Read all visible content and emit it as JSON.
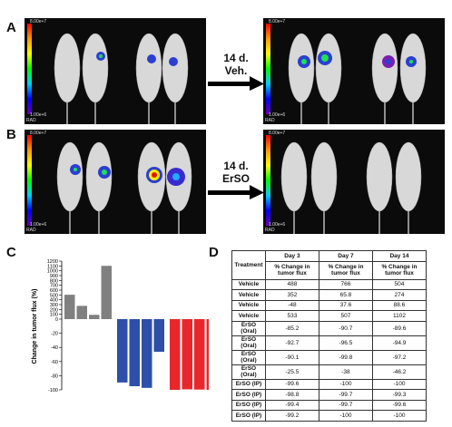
{
  "panels": {
    "a": "A",
    "b": "B",
    "c": "C",
    "d": "D"
  },
  "imaging": {
    "scale_top": "8.00e+7",
    "scale_bottom": "1.00e+6",
    "rad": "RAD",
    "arrow_a": {
      "line1": "14 d.",
      "line2": "Veh."
    },
    "arrow_b": {
      "line1": "14 d.",
      "line2": "ErSO"
    }
  },
  "chart_data": {
    "type": "bar",
    "ylabel": "Change in tumor flux (%)",
    "ylim": [
      -100,
      1200
    ],
    "yticks": [
      "1200",
      "1100",
      "1000",
      "900",
      "800",
      "700",
      "600",
      "500",
      "400",
      "300",
      "200",
      "100",
      "0",
      "-20",
      "-40",
      "-60",
      "-80",
      "-100"
    ],
    "series": [
      {
        "values": [
          504,
          274,
          88.6,
          1102
        ],
        "color": "#808080"
      },
      {
        "values": [
          -89.6,
          -94.9,
          -97.2,
          -46.2
        ],
        "color": "#2e4fa8"
      },
      {
        "values": [
          -100,
          -99.3,
          -99.6,
          -100
        ],
        "color": "#e8262b"
      }
    ]
  },
  "table": {
    "headers": {
      "treatment": "Treatment",
      "day3": "Day 3",
      "day7": "Day 7",
      "day14": "Day 14",
      "sub": "% Change in tumor flux"
    },
    "rows": [
      [
        "Vehicle",
        "488",
        "766",
        "504"
      ],
      [
        "Vehicle",
        "352",
        "65.8",
        "274"
      ],
      [
        "Vehicle",
        "-48",
        "37.6",
        "88.6"
      ],
      [
        "Vehicle",
        "533",
        "507",
        "1102"
      ],
      [
        "ErSO (Oral)",
        "-85.2",
        "-90.7",
        "-89.6"
      ],
      [
        "ErSO (Oral)",
        "-92.7",
        "-96.5",
        "-94.9"
      ],
      [
        "ErSO (Oral)",
        "-90.1",
        "-99.8",
        "-97.2"
      ],
      [
        "ErSO (Oral)",
        "-25.5",
        "-38",
        "-46.2"
      ],
      [
        "ErSO (IP)",
        "-99.6",
        "-100",
        "-100"
      ],
      [
        "ErSO (IP)",
        "-98.8",
        "-99.7",
        "-99.3"
      ],
      [
        "ErSO (IP)",
        "-99.4",
        "-99.7",
        "-99.6"
      ],
      [
        "ErSO (IP)",
        "-99.2",
        "-100",
        "-100"
      ]
    ]
  },
  "colors": {
    "vehicle": "#808080",
    "oral": "#2e4fa8",
    "ip": "#e8262b"
  }
}
